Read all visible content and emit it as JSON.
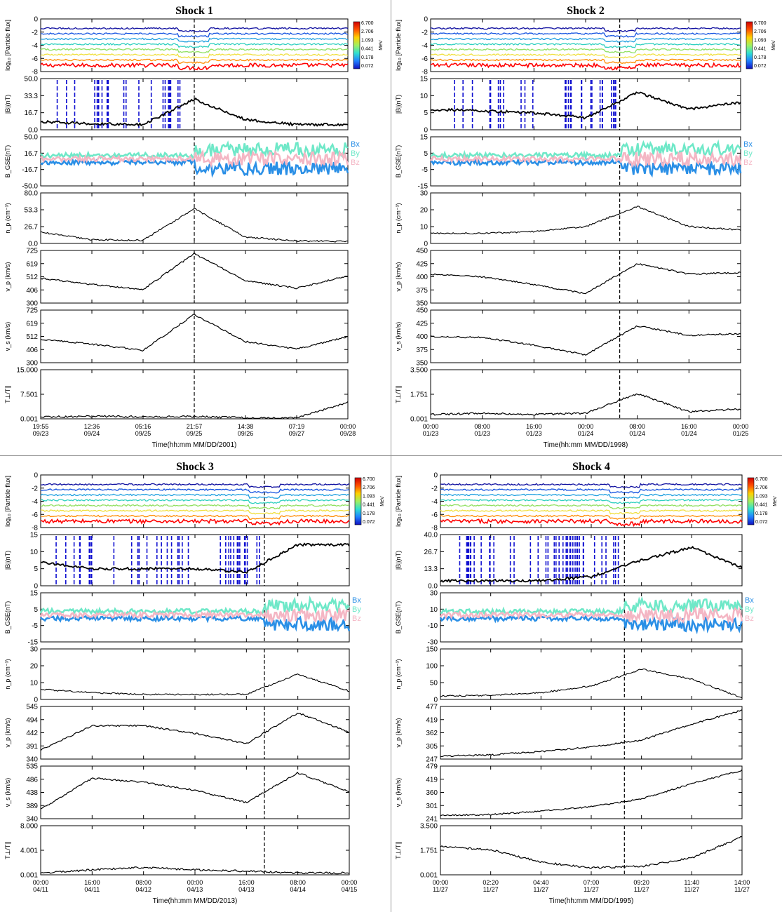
{
  "figure": {
    "shocks": [
      {
        "title": "Shock 1",
        "xlabel": "Time(hh:mm MM/DD/2001)",
        "time_ticks": [
          [
            "19:55",
            "09/23"
          ],
          [
            "12:36",
            "09/24"
          ],
          [
            "05:16",
            "09/25"
          ],
          [
            "21:57",
            "09/25"
          ],
          [
            "14:38",
            "09/26"
          ],
          [
            "07:19",
            "09/27"
          ],
          [
            "00:00",
            "09/28"
          ]
        ],
        "shock_fraction": 0.5,
        "colorbar_labels": [
          "6.700",
          "2.706",
          "1.093",
          "0.441",
          "0.178",
          "0.072"
        ],
        "colorbar_unit": "MeV",
        "panels": [
          {
            "ylabel": "log₁₀ [Particle flux]",
            "yticks": [
              "0",
              "-2",
              "-4",
              "-6",
              "-8"
            ],
            "type": "flux"
          },
          {
            "ylabel": "|B|(nT)",
            "yticks": [
              "50.0",
              "33.3",
              "16.7",
              "0.0"
            ],
            "type": "bmag"
          },
          {
            "ylabel": "B_GSE(nT)",
            "yticks": [
              "50.0",
              "16.7",
              "-16.7",
              "-50.0"
            ],
            "type": "bcomp"
          },
          {
            "ylabel": "n_p (cm⁻³)",
            "yticks": [
              "80.0",
              "53.3",
              "26.7",
              "0.0"
            ],
            "type": "density"
          },
          {
            "ylabel": "v_p (km/s)",
            "yticks": [
              "725",
              "619",
              "512",
              "406",
              "300"
            ],
            "type": "speed"
          },
          {
            "ylabel": "v_s (km/s)",
            "yticks": [
              "725",
              "619",
              "512",
              "406",
              "300"
            ],
            "type": "speed"
          },
          {
            "ylabel": "T⊥/T∥",
            "yticks": [
              "15.000",
              "7.501",
              "0.001"
            ],
            "type": "temp"
          }
        ]
      },
      {
        "title": "Shock 2",
        "xlabel": "Time(hh:mm MM/DD/1998)",
        "time_ticks": [
          [
            "00:00",
            "01/23"
          ],
          [
            "08:00",
            "01/23"
          ],
          [
            "16:00",
            "01/23"
          ],
          [
            "00:00",
            "01/24"
          ],
          [
            "08:00",
            "01/24"
          ],
          [
            "16:00",
            "01/24"
          ],
          [
            "00:00",
            "01/25"
          ]
        ],
        "shock_fraction": 0.61,
        "colorbar_labels": [
          "6.700",
          "2.706",
          "1.093",
          "0.441",
          "0.178",
          "0.072"
        ],
        "colorbar_unit": "MeV",
        "panels": [
          {
            "ylabel": "log₁₀ [Particle flux]",
            "yticks": [
              "0",
              "-2",
              "-4",
              "-6",
              "-8"
            ],
            "type": "flux"
          },
          {
            "ylabel": "|B|(nT)",
            "yticks": [
              "15",
              "10",
              "5",
              "0"
            ],
            "type": "bmag"
          },
          {
            "ylabel": "B_GSE(nT)",
            "yticks": [
              "15",
              "5",
              "-5",
              "-15"
            ],
            "type": "bcomp"
          },
          {
            "ylabel": "n_p (cm⁻³)",
            "yticks": [
              "30",
              "20",
              "10",
              "0"
            ],
            "type": "density"
          },
          {
            "ylabel": "v_p (km/s)",
            "yticks": [
              "450",
              "425",
              "400",
              "375",
              "350"
            ],
            "type": "speed"
          },
          {
            "ylabel": "v_s (km/s)",
            "yticks": [
              "450",
              "425",
              "400",
              "375",
              "350"
            ],
            "type": "speed"
          },
          {
            "ylabel": "T⊥/T∥",
            "yticks": [
              "3.500",
              "1.751",
              "0.001"
            ],
            "type": "temp"
          }
        ]
      },
      {
        "title": "Shock 3",
        "xlabel": "Time(hh:mm MM/DD/2013)",
        "time_ticks": [
          [
            "00:00",
            "04/11"
          ],
          [
            "16:00",
            "04/11"
          ],
          [
            "08:00",
            "04/12"
          ],
          [
            "00:00",
            "04/13"
          ],
          [
            "16:00",
            "04/13"
          ],
          [
            "08:00",
            "04/14"
          ],
          [
            "00:00",
            "04/15"
          ]
        ],
        "shock_fraction": 0.725,
        "colorbar_labels": [
          "6.700",
          "2.706",
          "1.093",
          "0.441",
          "0.178",
          "0.072"
        ],
        "colorbar_unit": "MeV",
        "panels": [
          {
            "ylabel": "log₁₀ [Particle flux]",
            "yticks": [
              "0",
              "-2",
              "-4",
              "-6",
              "-8"
            ],
            "type": "flux"
          },
          {
            "ylabel": "|B|(nT)",
            "yticks": [
              "15",
              "10",
              "5",
              "0"
            ],
            "type": "bmag"
          },
          {
            "ylabel": "B_GSE(nT)",
            "yticks": [
              "15",
              "5",
              "-5",
              "-15"
            ],
            "type": "bcomp"
          },
          {
            "ylabel": "n_p (cm⁻³)",
            "yticks": [
              "30",
              "20",
              "10",
              "0"
            ],
            "type": "density"
          },
          {
            "ylabel": "v_p (km/s)",
            "yticks": [
              "545",
              "494",
              "442",
              "391",
              "340"
            ],
            "type": "speed"
          },
          {
            "ylabel": "v_s (km/s)",
            "yticks": [
              "535",
              "486",
              "438",
              "389",
              "340"
            ],
            "type": "speed"
          },
          {
            "ylabel": "T⊥/T∥",
            "yticks": [
              "8.000",
              "4.001",
              "0.001"
            ],
            "type": "temp"
          }
        ]
      },
      {
        "title": "Shock 4",
        "xlabel": "Time(hh:mm MM/DD/1995)",
        "time_ticks": [
          [
            "00:00",
            "11/27"
          ],
          [
            "02:20",
            "11/27"
          ],
          [
            "04:40",
            "11/27"
          ],
          [
            "07:00",
            "11/27"
          ],
          [
            "09:20",
            "11/27"
          ],
          [
            "11:40",
            "11/27"
          ],
          [
            "14:00",
            "11/27"
          ]
        ],
        "shock_fraction": 0.61,
        "colorbar_labels": [
          "6.700",
          "2.706",
          "1.093",
          "0.441",
          "0.178",
          "0.072"
        ],
        "colorbar_unit": "MeV",
        "panels": [
          {
            "ylabel": "log₁₀ [Particle flux]",
            "yticks": [
              "0",
              "-2",
              "-4",
              "-6",
              "-8"
            ],
            "type": "flux"
          },
          {
            "ylabel": "|B|(nT)",
            "yticks": [
              "40.0",
              "26.7",
              "13.3",
              "0.0"
            ],
            "type": "bmag"
          },
          {
            "ylabel": "B_GSE(nT)",
            "yticks": [
              "30",
              "10",
              "-10",
              "-30"
            ],
            "type": "bcomp"
          },
          {
            "ylabel": "n_p (cm⁻³)",
            "yticks": [
              "150",
              "100",
              "50",
              "0"
            ],
            "type": "density"
          },
          {
            "ylabel": "v_p (km/s)",
            "yticks": [
              "477",
              "419",
              "362",
              "305",
              "247"
            ],
            "type": "speed"
          },
          {
            "ylabel": "v_s (km/s)",
            "yticks": [
              "479",
              "419",
              "360",
              "301",
              "241"
            ],
            "type": "speed"
          },
          {
            "ylabel": "T⊥/T∥",
            "yticks": [
              "3.500",
              "1.751",
              "0.001"
            ],
            "type": "temp"
          }
        ]
      }
    ],
    "legend_bcomp": [
      "Bx",
      "By",
      "Bz"
    ],
    "colors": {
      "axis": "#000000",
      "trace": "#000000",
      "shock_line": "#000000",
      "upstream_marks": "#1010d0",
      "bx": "#2a8fe6",
      "by": "#6fe8c8",
      "bz": "#f4b6c4",
      "flux": [
        "#ff0000",
        "#ff8c00",
        "#f0e040",
        "#90e060",
        "#30d0c0",
        "#20a0e0",
        "#1050e0",
        "#1010a0"
      ]
    }
  },
  "chart_data": [
    {
      "type": "line",
      "title": "Shock 1",
      "xlabel": "Time(hh:mm MM/DD/2001)",
      "x": [
        "09/23 19:55",
        "09/24 12:36",
        "09/25 05:16",
        "09/25 21:57",
        "09/26 14:38",
        "09/27 07:19",
        "09/28 00:00"
      ],
      "shock_time": "09/25 21:57",
      "series": [
        {
          "name": "|B|(nT)",
          "values": [
            8,
            6,
            5,
            30,
            10,
            5,
            5
          ]
        },
        {
          "name": "n_p (cm⁻³)",
          "values": [
            18,
            6,
            5,
            55,
            10,
            4,
            3
          ]
        },
        {
          "name": "v_p (km/s)",
          "values": [
            500,
            450,
            410,
            700,
            480,
            420,
            520
          ]
        },
        {
          "name": "v_s (km/s)",
          "values": [
            490,
            450,
            400,
            690,
            470,
            410,
            510
          ]
        },
        {
          "name": "T⊥/T∥",
          "values": [
            0.5,
            0.8,
            0.6,
            0.7,
            0.3,
            0.3,
            5
          ]
        }
      ],
      "ylim": {
        "|B|(nT)": [
          0,
          50
        ],
        "n_p (cm⁻³)": [
          0,
          80
        ],
        "v_p (km/s)": [
          300,
          725
        ],
        "v_s (km/s)": [
          300,
          725
        ],
        "T⊥/T∥": [
          0.001,
          15
        ]
      }
    },
    {
      "type": "line",
      "title": "Shock 2",
      "xlabel": "Time(hh:mm MM/DD/1998)",
      "x": [
        "01/23 00:00",
        "01/23 08:00",
        "01/23 16:00",
        "01/24 00:00",
        "01/24 08:00",
        "01/24 16:00",
        "01/25 00:00"
      ],
      "shock_time": "01/24 05:00",
      "series": [
        {
          "name": "|B|(nT)",
          "values": [
            6,
            5.5,
            5,
            3.5,
            11,
            6,
            8
          ]
        },
        {
          "name": "n_p (cm⁻³)",
          "values": [
            6,
            6,
            7,
            10,
            22,
            10,
            8
          ]
        },
        {
          "name": "v_p (km/s)",
          "values": [
            405,
            400,
            385,
            368,
            425,
            405,
            408
          ]
        },
        {
          "name": "v_s (km/s)",
          "values": [
            400,
            398,
            383,
            365,
            420,
            402,
            405
          ]
        },
        {
          "name": "T⊥/T∥",
          "values": [
            0.3,
            0.4,
            0.3,
            0.4,
            1.8,
            0.5,
            0.7
          ]
        }
      ],
      "ylim": {
        "|B|(nT)": [
          0,
          15
        ],
        "n_p (cm⁻³)": [
          0,
          30
        ],
        "v_p (km/s)": [
          350,
          450
        ],
        "v_s (km/s)": [
          350,
          450
        ],
        "T⊥/T∥": [
          0.001,
          3.5
        ]
      }
    },
    {
      "type": "line",
      "title": "Shock 3",
      "xlabel": "Time(hh:mm MM/DD/2013)",
      "x": [
        "04/11 00:00",
        "04/11 16:00",
        "04/12 08:00",
        "04/13 00:00",
        "04/13 16:00",
        "04/14 08:00",
        "04/15 00:00"
      ],
      "shock_time": "04/13 22:00",
      "series": [
        {
          "name": "|B|(nT)",
          "values": [
            7,
            5,
            5,
            5,
            4,
            12,
            12
          ]
        },
        {
          "name": "n_p (cm⁻³)",
          "values": [
            6,
            4,
            3,
            3,
            3,
            15,
            5
          ]
        },
        {
          "name": "v_p (km/s)",
          "values": [
            375,
            470,
            470,
            440,
            400,
            520,
            445
          ]
        },
        {
          "name": "v_s (km/s)",
          "values": [
            375,
            490,
            475,
            445,
            400,
            510,
            440
          ]
        },
        {
          "name": "T⊥/T∥",
          "values": [
            0.3,
            0.8,
            1.2,
            0.8,
            0.6,
            0.3,
            0.3
          ]
        }
      ],
      "ylim": {
        "|B|(nT)": [
          0,
          15
        ],
        "n_p (cm⁻³)": [
          0,
          30
        ],
        "v_p (km/s)": [
          340,
          545
        ],
        "v_s (km/s)": [
          340,
          535
        ],
        "T⊥/T∥": [
          0.001,
          8
        ]
      }
    },
    {
      "type": "line",
      "title": "Shock 4",
      "xlabel": "Time(hh:mm MM/DD/1995)",
      "x": [
        "11/27 00:00",
        "11/27 02:20",
        "11/27 04:40",
        "11/27 07:00",
        "11/27 09:20",
        "11/27 11:40",
        "11/27 14:00"
      ],
      "shock_time": "11/27 08:30",
      "series": [
        {
          "name": "|B|(nT)",
          "values": [
            4,
            4,
            4,
            7,
            20,
            30,
            14
          ]
        },
        {
          "name": "n_p (cm⁻³)",
          "values": [
            10,
            12,
            20,
            40,
            90,
            60,
            5
          ]
        },
        {
          "name": "v_p (km/s)",
          "values": [
            260,
            265,
            280,
            300,
            330,
            400,
            460
          ]
        },
        {
          "name": "v_s (km/s)",
          "values": [
            255,
            260,
            275,
            295,
            330,
            400,
            460
          ]
        },
        {
          "name": "T⊥/T∥",
          "values": [
            2,
            1.8,
            0.9,
            0.5,
            0.6,
            1.2,
            2.7
          ]
        }
      ],
      "ylim": {
        "|B|(nT)": [
          0,
          40
        ],
        "n_p (cm⁻³)": [
          0,
          150
        ],
        "v_p (km/s)": [
          247,
          477
        ],
        "v_s (km/s)": [
          241,
          479
        ],
        "T⊥/T∥": [
          0.001,
          3.5
        ]
      }
    }
  ]
}
